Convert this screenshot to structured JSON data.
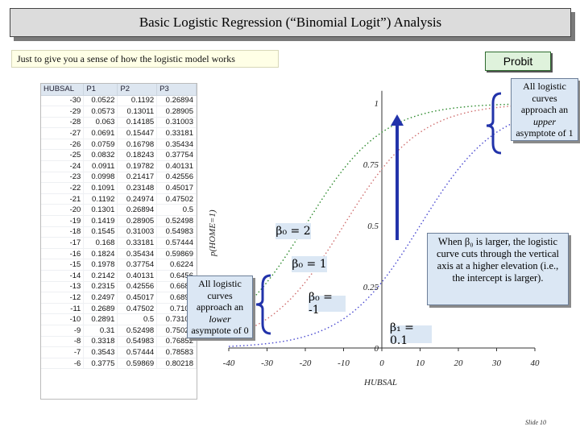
{
  "title": "Basic Logistic Regression (“Binomial Logit”) Analysis",
  "subtitle": "Just to give you a sense of how the logistic model works",
  "probit_button": "Probit",
  "spreadsheet": {
    "headers": [
      "HUBSAL",
      "P1",
      "P2",
      "P3"
    ],
    "rows": [
      [
        "-30",
        "0.0522",
        "0.1192",
        "0.26894"
      ],
      [
        "-29",
        "0.0573",
        "0.13011",
        "0.28905"
      ],
      [
        "-28",
        "0.063",
        "0.14185",
        "0.31003"
      ],
      [
        "-27",
        "0.0691",
        "0.15447",
        "0.33181"
      ],
      [
        "-26",
        "0.0759",
        "0.16798",
        "0.35434"
      ],
      [
        "-25",
        "0.0832",
        "0.18243",
        "0.37754"
      ],
      [
        "-24",
        "0.0911",
        "0.19782",
        "0.40131"
      ],
      [
        "-23",
        "0.0998",
        "0.21417",
        "0.42556"
      ],
      [
        "-22",
        "0.1091",
        "0.23148",
        "0.45017"
      ],
      [
        "-21",
        "0.1192",
        "0.24974",
        "0.47502"
      ],
      [
        "-20",
        "0.1301",
        "0.26894",
        "0.5"
      ],
      [
        "-19",
        "0.1419",
        "0.28905",
        "0.52498"
      ],
      [
        "-18",
        "0.1545",
        "0.31003",
        "0.54983"
      ],
      [
        "-17",
        "0.168",
        "0.33181",
        "0.57444"
      ],
      [
        "-16",
        "0.1824",
        "0.35434",
        "0.59869"
      ],
      [
        "-15",
        "0.1978",
        "0.37754",
        "0.6224"
      ],
      [
        "-14",
        "0.2142",
        "0.40131",
        "0.6456"
      ],
      [
        "-13",
        "0.2315",
        "0.42556",
        "0.6687"
      ],
      [
        "-12",
        "0.2497",
        "0.45017",
        "0.6899"
      ],
      [
        "-11",
        "0.2689",
        "0.47502",
        "0.7109"
      ],
      [
        "-10",
        "0.2891",
        "0.5",
        "0.73106"
      ],
      [
        "-9",
        "0.31",
        "0.52498",
        "0.75026"
      ],
      [
        "-8",
        "0.3318",
        "0.54983",
        "0.76852"
      ],
      [
        "-7",
        "0.3543",
        "0.57444",
        "0.78583"
      ],
      [
        "-6",
        "0.3775",
        "0.59869",
        "0.80218"
      ]
    ]
  },
  "chart_data": {
    "type": "line",
    "xlabel": "HUBSAL",
    "ylabel": "p(HOME=1)",
    "xlim": [
      -40,
      40
    ],
    "ylim": [
      0,
      1
    ],
    "x_ticks": [
      "-40",
      "-30",
      "-20",
      "-10",
      "0",
      "10",
      "20",
      "30",
      "40"
    ],
    "y_ticks": [
      "0",
      "0.25",
      "0.5",
      "0.75",
      "1"
    ],
    "series": [
      {
        "beta0": 2,
        "beta1": 0.1,
        "color": "#2e8b2e"
      },
      {
        "beta0": 1,
        "beta1": 0.1,
        "color": "#d07070"
      },
      {
        "beta0": -1,
        "beta1": 0.1,
        "color": "#4a4ad0"
      }
    ]
  },
  "labels": {
    "beta0_2": "β₀ = 2",
    "beta0_1": "β₀ = 1",
    "beta0_m1": "β₀ = -1",
    "beta1": "β₁ = 0.1"
  },
  "notes": {
    "upper": [
      "All logistic",
      "curves",
      "approach an",
      "upper",
      "asymptote of 1"
    ],
    "lower": [
      "All logistic",
      "curves",
      "approach an",
      "lower",
      "asymptote of 0"
    ],
    "larger": "When β₀ is larger, the logistic curve cuts through the vertical axis at a higher elevation (i.e., the intercept is larger)."
  },
  "slide_number": "Slide 10"
}
